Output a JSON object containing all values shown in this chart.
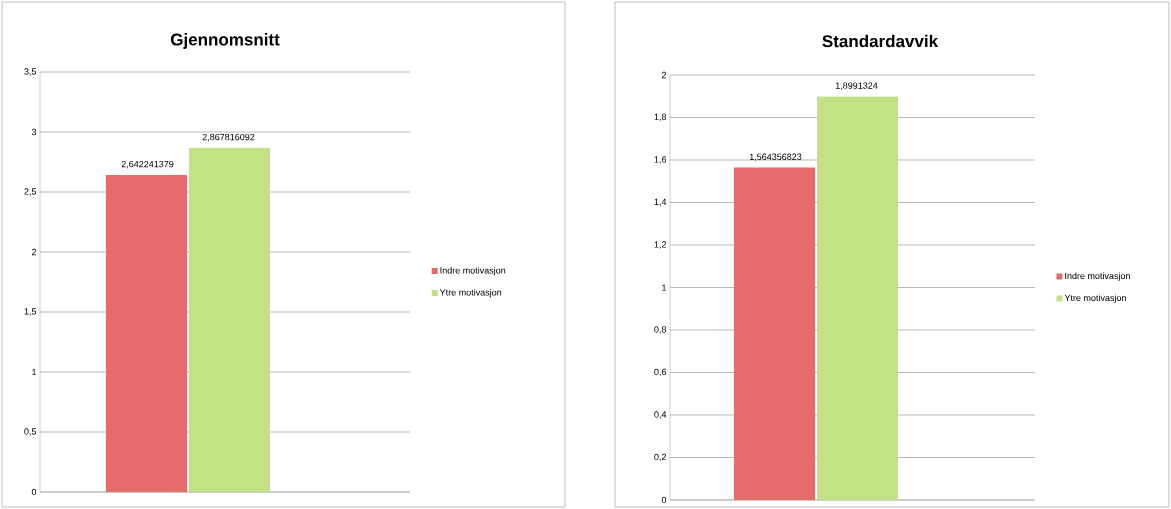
{
  "chart_data": [
    {
      "type": "bar",
      "title": "Gjennomsnitt",
      "categories": [
        null
      ],
      "ylim": [
        0,
        3.5
      ],
      "yticks": [
        0,
        {
          "value": 0.5,
          "label": "0,5"
        },
        1,
        {
          "value": 1.5,
          "label": "1,5"
        },
        2,
        {
          "value": 2.5,
          "label": "2,5"
        },
        3,
        {
          "value": 3.5,
          "label": "3,5"
        }
      ],
      "grid": "y",
      "legend": "right",
      "series": [
        {
          "name": "Indre motivasjon",
          "color": "#e46c6a",
          "values": [
            2.642241379
          ],
          "value_labels": [
            "2,642241379"
          ]
        },
        {
          "name": "Ytre motivasjon",
          "color": "#c2e283",
          "values": [
            2.867816092
          ],
          "value_labels": [
            "2,867816092"
          ]
        }
      ]
    },
    {
      "type": "bar",
      "title": "Standardavvik",
      "categories": [
        null
      ],
      "ylim": [
        0,
        2
      ],
      "yticks": [
        0,
        {
          "value": 0.2,
          "label": "0,2"
        },
        {
          "value": 0.4,
          "label": "0,4"
        },
        {
          "value": 0.6,
          "label": "0,6"
        },
        {
          "value": 0.8,
          "label": "0,8"
        },
        1,
        {
          "value": 1.2,
          "label": "1,2"
        },
        {
          "value": 1.4,
          "label": "1,4"
        },
        {
          "value": 1.6,
          "label": "1,6"
        },
        {
          "value": 1.8,
          "label": "1,8"
        },
        2
      ],
      "grid": "y",
      "legend": "right",
      "series": [
        {
          "name": "Indre motivasjon",
          "color": "#e46c6a",
          "values": [
            1.564356823
          ],
          "value_labels": [
            "1,564356823"
          ]
        },
        {
          "name": "Ytre motivasjon",
          "color": "#c2e283",
          "values": [
            1.8991324
          ],
          "value_labels": [
            "1,8991324"
          ]
        }
      ]
    }
  ]
}
